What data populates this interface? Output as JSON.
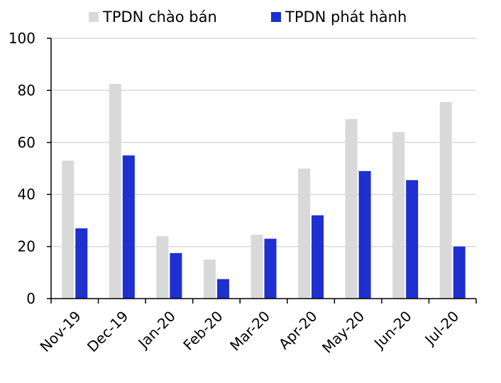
{
  "chart_data": {
    "type": "bar",
    "categories": [
      "Nov-19",
      "Dec-19",
      "Jan-20",
      "Feb-20",
      "Mar-20",
      "Apr-20",
      "May-20",
      "Jun-20",
      "Jul-20"
    ],
    "series": [
      {
        "name": "TPDN chào bán",
        "color": "#d9d9d9",
        "values": [
          53,
          82.5,
          24,
          15,
          24.5,
          50,
          69,
          64,
          75.5
        ]
      },
      {
        "name": "TPDN phát hành",
        "color": "#1f2fd0",
        "values": [
          27,
          55,
          17.5,
          7.5,
          23,
          32,
          49,
          45.5,
          20
        ]
      }
    ],
    "y_ticks": [
      0,
      20,
      40,
      60,
      80,
      100
    ],
    "ylim": [
      0,
      100
    ],
    "grid": true,
    "legend_position": "top",
    "gridline_color": "#d9d9d9"
  }
}
